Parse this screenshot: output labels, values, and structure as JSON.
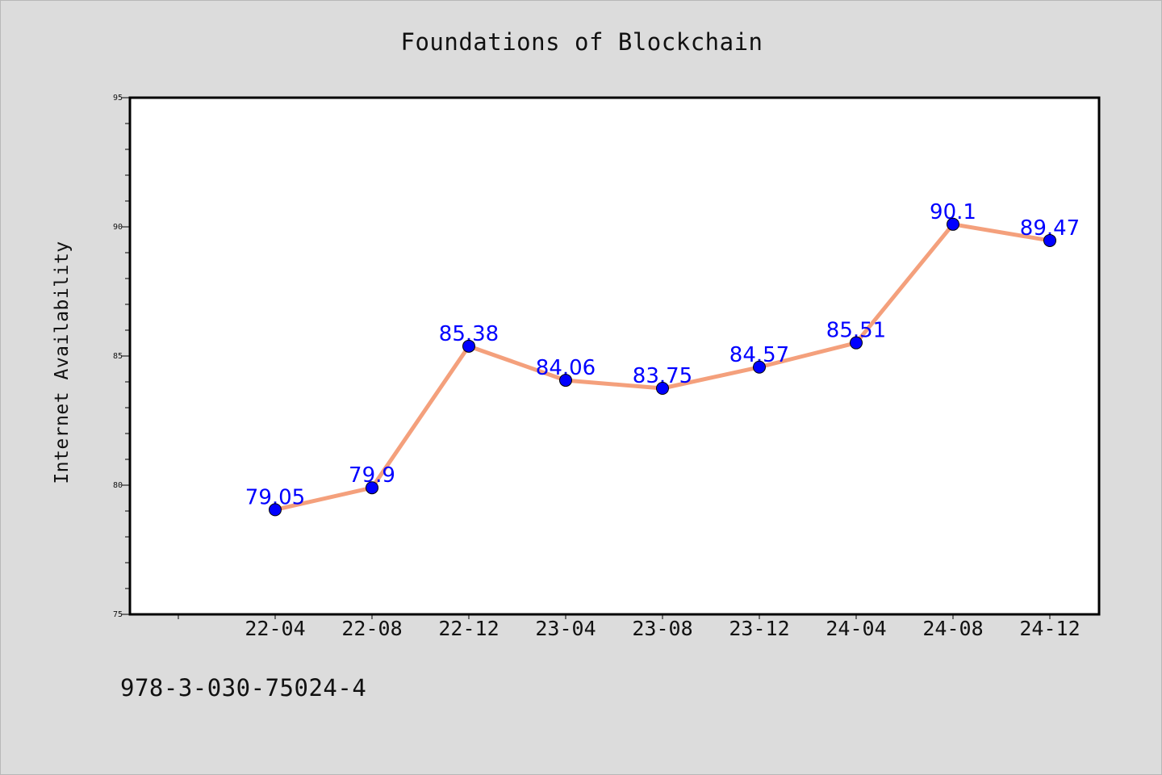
{
  "chart_data": {
    "type": "line",
    "title": "Foundations of Blockchain",
    "xlabel": "",
    "ylabel": "Internet Availability",
    "categories": [
      "22-04",
      "22-08",
      "22-12",
      "23-04",
      "23-08",
      "23-12",
      "24-04",
      "24-08",
      "24-12"
    ],
    "series": [
      {
        "values": [
          79.05,
          79.9,
          85.38,
          84.06,
          83.75,
          84.57,
          85.51,
          90.1,
          89.47
        ],
        "data_labels": [
          "79.05",
          "79.9",
          "85.38",
          "84.06",
          "83.75",
          "84.57",
          "85.51",
          "90.1",
          "89.47"
        ]
      }
    ],
    "ylim": [
      75,
      95
    ],
    "yticks": [
      "75",
      "80",
      "85",
      "90",
      "95"
    ],
    "grid": false,
    "legend": "none",
    "colors": {
      "line": "#f4a07c",
      "marker": "#0000ff",
      "data_label": "#0000ff",
      "plot_background": "#ffffff",
      "page_background": "#dcdcdc"
    }
  },
  "footer": {
    "code": "978-3-030-75024-4"
  }
}
